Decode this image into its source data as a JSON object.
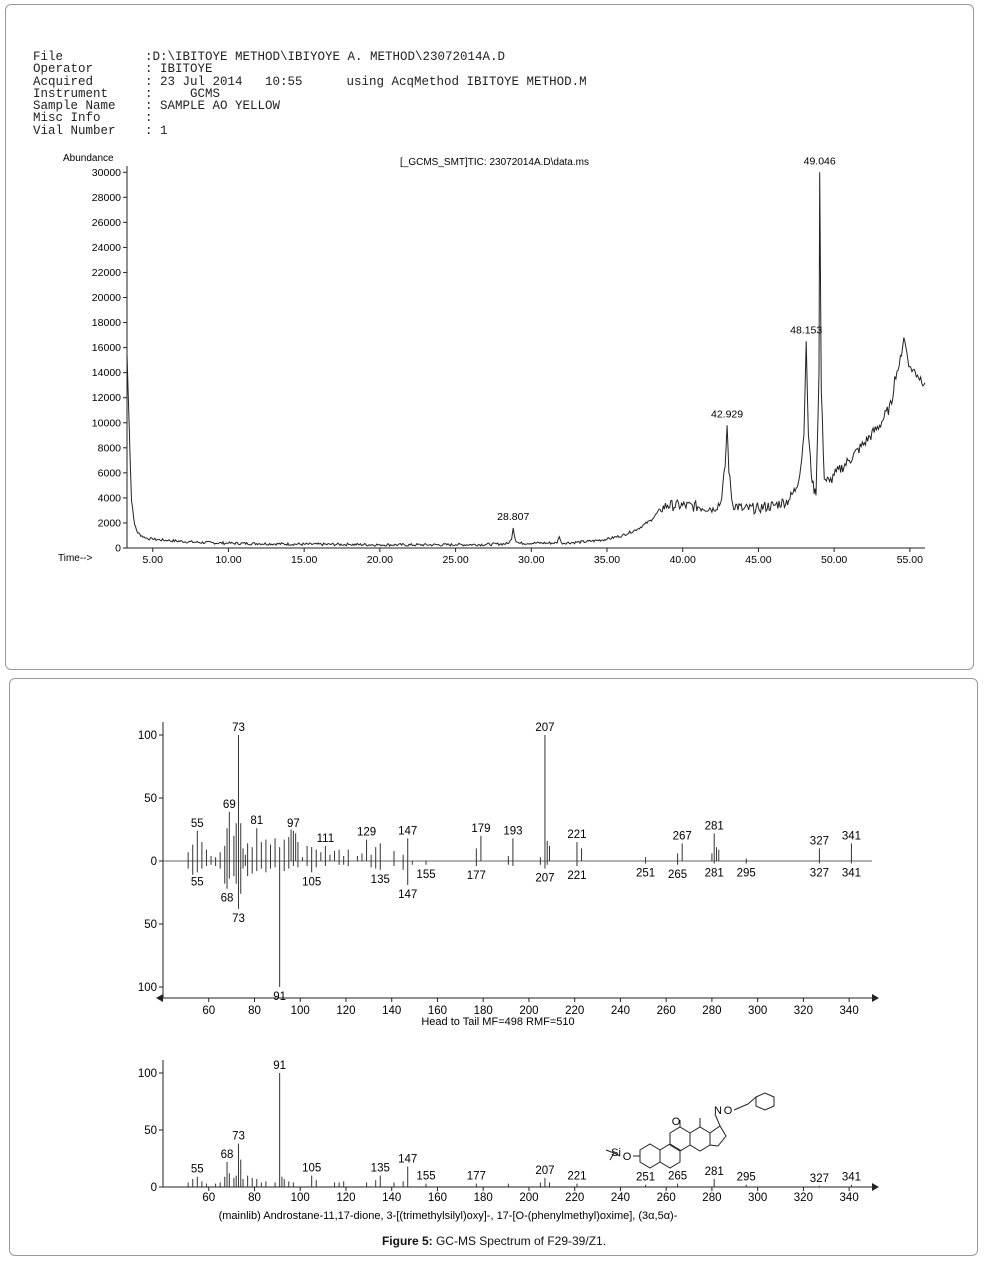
{
  "header": {
    "file_label": "File",
    "file_value": ":D:\\IBITOYE METHOD\\IBIYOYE A. METHOD\\23072014A.D",
    "operator_label": "Operator",
    "operator_value": ": IBITOYE",
    "acquired_label": "Acquired",
    "acquired_value": ": 23 Jul 2014   10:55",
    "acq_method": "using AcqMethod IBITOYE METHOD.M",
    "instrument_label": "Instrument",
    "instrument_value": ":     GCMS",
    "sample_label": "Sample Name",
    "sample_value": ": SAMPLE AO YELLOW",
    "misc_label": "Misc Info",
    "misc_value": ":",
    "vial_label": "Vial Number",
    "vial_value": ": 1"
  },
  "caption": {
    "bold": "Figure 5:",
    "text": " GC-MS Spectrum of F29-39/Z1."
  },
  "chart_data": [
    {
      "type": "line",
      "title": "[_GCMS_SMT]TIC: 23072014A.D\\data.ms",
      "ylabel": "Abundance",
      "xlabel": "Time-->",
      "xlim": [
        3.3,
        56
      ],
      "ylim": [
        0,
        30500
      ],
      "xticks": [
        "5.00",
        "10.00",
        "15.00",
        "20.00",
        "25.00",
        "30.00",
        "35.00",
        "40.00",
        "45.00",
        "50.00",
        "55.00"
      ],
      "yticks": [
        "0",
        "2000",
        "4000",
        "6000",
        "8000",
        "10000",
        "12000",
        "14000",
        "16000",
        "18000",
        "20000",
        "22000",
        "24000",
        "26000",
        "28000",
        "30000"
      ],
      "x": [
        3.3,
        3.45,
        3.6,
        3.8,
        4.0,
        4.5,
        5,
        6,
        8,
        10,
        12,
        15,
        18,
        20,
        22,
        25,
        27,
        28.5,
        28.7,
        28.807,
        28.95,
        29.2,
        31,
        31.7,
        31.85,
        32.0,
        33,
        34,
        35,
        36,
        37,
        38,
        38.5,
        39,
        40,
        41,
        42,
        42.5,
        42.8,
        42.929,
        43.05,
        43.3,
        44,
        45,
        46,
        47,
        47.5,
        47.8,
        48.0,
        48.153,
        48.3,
        48.55,
        48.8,
        49.0,
        49.046,
        49.15,
        49.35,
        49.7,
        50,
        51,
        52,
        53,
        53.8,
        54,
        54.3,
        54.6,
        55,
        55.5,
        56
      ],
      "y": [
        15500,
        9500,
        3800,
        1900,
        1200,
        800,
        700,
        600,
        450,
        380,
        350,
        300,
        280,
        260,
        250,
        260,
        280,
        350,
        700,
        1600,
        650,
        380,
        400,
        400,
        900,
        400,
        450,
        550,
        700,
        1000,
        1500,
        2300,
        3100,
        3400,
        3400,
        3300,
        3200,
        3600,
        6500,
        9800,
        6000,
        3500,
        3100,
        3200,
        3400,
        3800,
        4800,
        6500,
        9000,
        16500,
        9000,
        5200,
        4200,
        14000,
        30000,
        12500,
        5500,
        5300,
        5800,
        7000,
        8400,
        9800,
        11500,
        13700,
        14600,
        16800,
        14500,
        13800,
        13200
      ],
      "peak_labels": [
        {
          "x": 28.807,
          "label": "28.807"
        },
        {
          "x": 42.929,
          "label": "42.929"
        },
        {
          "x": 48.153,
          "label": "48.153"
        },
        {
          "x": 49.046,
          "label": "49.046"
        }
      ]
    },
    {
      "type": "bar",
      "title": "",
      "subtitle": "Head to Tail MF=498 RMF=510",
      "xlim": [
        40,
        350
      ],
      "ylim": [
        -100,
        100
      ],
      "xticks": [
        60,
        80,
        100,
        120,
        140,
        160,
        180,
        200,
        220,
        240,
        260,
        280,
        300,
        320,
        340
      ],
      "yticks": [
        "100",
        "50",
        "0",
        "50",
        "100"
      ],
      "series": [
        {
          "x": [
            51,
            53,
            55,
            57,
            59,
            61,
            63,
            65,
            67,
            68,
            69,
            71,
            72,
            73,
            74,
            75,
            76,
            77,
            79,
            81,
            83,
            85,
            87,
            89,
            91,
            93,
            95,
            96,
            97,
            98,
            99,
            101,
            103,
            105,
            107,
            109,
            111,
            113,
            115,
            117,
            119,
            121,
            125,
            127,
            129,
            131,
            133,
            135,
            141,
            145,
            147,
            177,
            179,
            191,
            193,
            205,
            207,
            208,
            209,
            221,
            223,
            251,
            265,
            267,
            280,
            281,
            282,
            283,
            295,
            327,
            341
          ],
          "y": [
            7,
            13,
            24,
            15,
            9,
            4,
            3,
            7,
            12,
            26,
            39,
            20,
            30,
            100,
            30,
            10,
            5,
            14,
            11,
            26,
            15,
            17,
            13,
            18,
            11,
            17,
            19,
            25,
            24,
            22,
            15,
            3,
            12,
            11,
            9,
            7,
            12,
            5,
            8,
            9,
            4,
            9,
            4,
            6,
            17,
            5,
            11,
            14,
            8,
            5,
            18,
            10,
            20,
            4,
            18,
            3,
            100,
            16,
            12,
            15,
            10,
            3,
            6,
            14,
            6,
            22,
            11,
            9,
            2,
            10,
            14
          ]
        },
        {
          "x": [
            51,
            53,
            55,
            57,
            59,
            61,
            63,
            65,
            67,
            68,
            69,
            71,
            72,
            73,
            74,
            75,
            76,
            77,
            79,
            81,
            83,
            85,
            87,
            89,
            91,
            93,
            95,
            97,
            99,
            103,
            105,
            107,
            111,
            117,
            119,
            121,
            131,
            133,
            135,
            141,
            145,
            147,
            149,
            155,
            177,
            191,
            193,
            205,
            207,
            208,
            221,
            251,
            265,
            281,
            295,
            327,
            341
          ],
          "y": [
            -6,
            -11,
            -9,
            -6,
            -4,
            -3,
            -4,
            -6,
            -18,
            -22,
            -14,
            -12,
            -18,
            -38,
            -26,
            -6,
            -4,
            -12,
            -10,
            -8,
            -6,
            -9,
            -6,
            -5,
            -100,
            -8,
            -6,
            -4,
            -5,
            -4,
            -9,
            -5,
            -4,
            -3,
            -3,
            -4,
            -5,
            -6,
            -7,
            -4,
            -7,
            -19,
            -3,
            -3,
            -4,
            -3,
            -4,
            -3,
            -6,
            -3,
            -4,
            -2,
            -3,
            -2,
            -2,
            -2,
            -2
          ]
        }
      ],
      "labels_top": [
        {
          "x": 55,
          "label": "55"
        },
        {
          "x": 69,
          "label": "69"
        },
        {
          "x": 73,
          "label": "73"
        },
        {
          "x": 81,
          "label": "81"
        },
        {
          "x": 97,
          "label": "97"
        },
        {
          "x": 111,
          "label": "111"
        },
        {
          "x": 129,
          "label": "129"
        },
        {
          "x": 147,
          "label": "147"
        },
        {
          "x": 179,
          "label": "179"
        },
        {
          "x": 193,
          "label": "193"
        },
        {
          "x": 207,
          "label": "207"
        },
        {
          "x": 221,
          "label": "221"
        },
        {
          "x": 267,
          "label": "267"
        },
        {
          "x": 281,
          "label": "281"
        },
        {
          "x": 327,
          "label": "327"
        },
        {
          "x": 341,
          "label": "341"
        }
      ],
      "labels_bottom": [
        {
          "x": 55,
          "label": "55"
        },
        {
          "x": 68,
          "label": "68"
        },
        {
          "x": 73,
          "label": "73"
        },
        {
          "x": 91,
          "label": "91"
        },
        {
          "x": 105,
          "label": "105"
        },
        {
          "x": 135,
          "label": "135"
        },
        {
          "x": 147,
          "label": "147"
        },
        {
          "x": 155,
          "label": "155"
        },
        {
          "x": 177,
          "label": "177"
        },
        {
          "x": 207,
          "label": "207"
        },
        {
          "x": 221,
          "label": "221"
        },
        {
          "x": 251,
          "label": "251"
        },
        {
          "x": 265,
          "label": "265"
        },
        {
          "x": 281,
          "label": "281"
        },
        {
          "x": 295,
          "label": "295"
        },
        {
          "x": 327,
          "label": "327"
        },
        {
          "x": 341,
          "label": "341"
        }
      ]
    },
    {
      "type": "bar",
      "title": "",
      "subtitle": "(mainlib) Androstane-11,17-dione, 3-[(trimethylsilyl)oxy]-, 17-[O-(phenylmethyl)oxime], (3α,5α)-",
      "xlim": [
        40,
        350
      ],
      "ylim": [
        0,
        100
      ],
      "xticks": [
        60,
        80,
        100,
        120,
        140,
        160,
        180,
        200,
        220,
        240,
        260,
        280,
        300,
        320,
        340
      ],
      "yticks": [
        "0",
        "50",
        "100"
      ],
      "series": [
        {
          "x": [
            51,
            53,
            55,
            57,
            59,
            63,
            65,
            67,
            68,
            69,
            71,
            72,
            73,
            74,
            75,
            77,
            79,
            81,
            83,
            85,
            89,
            91,
            92,
            93,
            95,
            97,
            105,
            107,
            115,
            117,
            119,
            129,
            133,
            135,
            141,
            145,
            147,
            155,
            177,
            191,
            205,
            207,
            209,
            221,
            251,
            265,
            281,
            295,
            327,
            341
          ],
          "y": [
            4,
            7,
            9,
            5,
            3,
            3,
            4,
            9,
            22,
            12,
            8,
            10,
            38,
            24,
            7,
            10,
            8,
            7,
            4,
            5,
            4,
            100,
            9,
            7,
            5,
            4,
            10,
            6,
            4,
            4,
            5,
            4,
            6,
            10,
            4,
            5,
            18,
            3,
            3,
            3,
            4,
            8,
            4,
            3,
            2,
            3,
            7,
            2,
            1,
            2
          ]
        }
      ],
      "labels": [
        {
          "x": 55,
          "label": "55"
        },
        {
          "x": 68,
          "label": "68"
        },
        {
          "x": 73,
          "label": "73"
        },
        {
          "x": 91,
          "label": "91"
        },
        {
          "x": 105,
          "label": "105"
        },
        {
          "x": 135,
          "label": "135"
        },
        {
          "x": 147,
          "label": "147"
        },
        {
          "x": 155,
          "label": "155"
        },
        {
          "x": 177,
          "label": "177"
        },
        {
          "x": 207,
          "label": "207"
        },
        {
          "x": 221,
          "label": "221"
        },
        {
          "x": 251,
          "label": "251"
        },
        {
          "x": 265,
          "label": "265"
        },
        {
          "x": 281,
          "label": "281"
        },
        {
          "x": 295,
          "label": "295"
        },
        {
          "x": 327,
          "label": "327"
        },
        {
          "x": 341,
          "label": "341"
        }
      ],
      "structure_labels": [
        "N",
        "O",
        "O",
        "O",
        "Si"
      ]
    }
  ]
}
